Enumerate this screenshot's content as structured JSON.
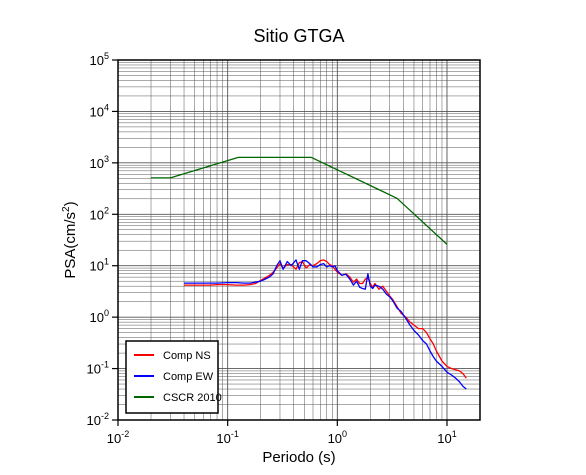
{
  "chart_data": {
    "type": "line",
    "title": "Sitio GTGA",
    "xlabel": "Periodo (s)",
    "ylabel_base": "PSA(cm/s",
    "ylabel_sup": "2",
    "ylabel_tail": ")",
    "x_scale": "log",
    "y_scale": "log",
    "xlim": [
      0.01,
      20
    ],
    "ylim": [
      0.01,
      100000
    ],
    "grid": true,
    "legend_position": "bottom-left",
    "x_ticks": [
      {
        "value": 0.01,
        "base": "10",
        "exp": "-2"
      },
      {
        "value": 0.1,
        "base": "10",
        "exp": "-1"
      },
      {
        "value": 1,
        "base": "10",
        "exp": "0"
      },
      {
        "value": 10,
        "base": "10",
        "exp": "1"
      }
    ],
    "y_ticks": [
      {
        "value": 0.01,
        "base": "10",
        "exp": "-2"
      },
      {
        "value": 0.1,
        "base": "10",
        "exp": "-1"
      },
      {
        "value": 1,
        "base": "10",
        "exp": "0"
      },
      {
        "value": 10,
        "base": "10",
        "exp": "1"
      },
      {
        "value": 100,
        "base": "10",
        "exp": "2"
      },
      {
        "value": 1000,
        "base": "10",
        "exp": "3"
      },
      {
        "value": 10000,
        "base": "10",
        "exp": "4"
      },
      {
        "value": 100000,
        "base": "10",
        "exp": "5"
      }
    ],
    "series": [
      {
        "name": "Comp NS",
        "color": "#ff0000",
        "x": [
          0.04,
          0.05,
          0.06,
          0.07,
          0.08,
          0.1,
          0.12,
          0.14,
          0.16,
          0.18,
          0.2,
          0.22,
          0.24,
          0.26,
          0.28,
          0.3,
          0.32,
          0.35,
          0.38,
          0.42,
          0.45,
          0.48,
          0.52,
          0.56,
          0.6,
          0.65,
          0.7,
          0.75,
          0.8,
          0.85,
          0.9,
          0.95,
          1.0,
          1.1,
          1.2,
          1.3,
          1.4,
          1.5,
          1.6,
          1.7,
          1.8,
          1.9,
          2.0,
          2.1,
          2.2,
          2.4,
          2.6,
          2.8,
          3.0,
          3.2,
          3.5,
          3.8,
          4.2,
          4.6,
          5.0,
          5.5,
          6.0,
          6.5,
          7.0,
          7.5,
          8.0,
          9.0,
          10.0,
          11.0,
          12.0,
          13.0,
          14.0,
          15.0
        ],
        "y": [
          4.2,
          4.2,
          4.2,
          4.2,
          4.3,
          4.3,
          4.2,
          4.2,
          4.3,
          4.5,
          5.2,
          5.8,
          6.5,
          7.5,
          9.0,
          11.0,
          9.0,
          10.5,
          10.5,
          8.5,
          11.5,
          12.0,
          9.0,
          10.5,
          10.0,
          11.0,
          12.5,
          13.0,
          12.0,
          10.5,
          10.0,
          8.5,
          7.5,
          6.5,
          7.0,
          6.0,
          4.8,
          5.5,
          4.5,
          4.5,
          5.5,
          5.8,
          4.5,
          3.8,
          4.5,
          3.5,
          4.0,
          3.2,
          2.6,
          2.2,
          1.6,
          1.2,
          1.0,
          0.8,
          0.7,
          0.6,
          0.6,
          0.5,
          0.38,
          0.3,
          0.22,
          0.14,
          0.11,
          0.1,
          0.095,
          0.09,
          0.08,
          0.065
        ]
      },
      {
        "name": "Comp EW",
        "color": "#0000ff",
        "x": [
          0.04,
          0.05,
          0.06,
          0.07,
          0.08,
          0.1,
          0.12,
          0.14,
          0.16,
          0.18,
          0.2,
          0.22,
          0.24,
          0.26,
          0.28,
          0.3,
          0.32,
          0.35,
          0.38,
          0.42,
          0.45,
          0.48,
          0.52,
          0.56,
          0.6,
          0.65,
          0.7,
          0.75,
          0.8,
          0.85,
          0.9,
          0.95,
          1.0,
          1.1,
          1.2,
          1.3,
          1.4,
          1.5,
          1.6,
          1.7,
          1.8,
          1.9,
          2.0,
          2.1,
          2.2,
          2.4,
          2.6,
          2.8,
          3.0,
          3.2,
          3.5,
          3.8,
          4.2,
          4.6,
          5.0,
          5.5,
          6.0,
          6.5,
          7.0,
          7.5,
          8.0,
          9.0,
          10.0,
          11.0,
          12.0,
          13.0,
          14.0,
          15.0
        ],
        "y": [
          4.6,
          4.6,
          4.6,
          4.6,
          4.6,
          4.7,
          4.7,
          4.6,
          4.6,
          4.8,
          5.0,
          5.5,
          6.0,
          7.0,
          10.0,
          12.5,
          8.5,
          12.0,
          10.0,
          13.0,
          8.5,
          12.5,
          12.5,
          11.0,
          9.5,
          9.5,
          10.5,
          11.0,
          9.5,
          10.0,
          9.5,
          10.0,
          8.0,
          6.5,
          6.8,
          5.5,
          4.2,
          5.0,
          3.8,
          3.6,
          3.5,
          7.0,
          4.0,
          3.6,
          4.2,
          4.0,
          3.5,
          2.8,
          2.5,
          2.1,
          1.5,
          1.3,
          0.95,
          0.7,
          0.55,
          0.45,
          0.35,
          0.3,
          0.22,
          0.17,
          0.14,
          0.11,
          0.085,
          0.075,
          0.065,
          0.055,
          0.045,
          0.04
        ]
      },
      {
        "name": "CSCR 2010",
        "color": "#006600",
        "x": [
          0.02,
          0.03,
          0.125,
          0.58,
          3.5,
          10.0
        ],
        "y": [
          510,
          510,
          1275,
          1275,
          205,
          26
        ]
      }
    ]
  }
}
